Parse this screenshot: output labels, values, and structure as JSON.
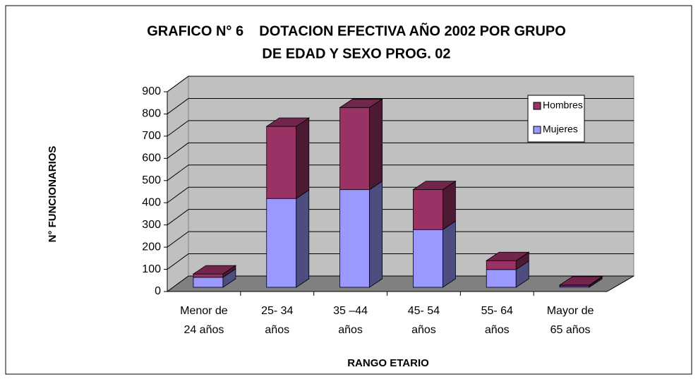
{
  "chart_data": {
    "type": "bar3d_stacked",
    "title": [
      "GRAFICO N° 6    DOTACION EFECTIVA AÑO 2002 POR GRUPO",
      "DE EDAD Y SEXO PROG. 02"
    ],
    "x_label": "RANGO ETARIO",
    "y_label": "N° FUNCIONARIOS",
    "categories": [
      [
        "Menor de",
        "24 años"
      ],
      [
        "25- 34",
        "años"
      ],
      [
        "35 –44",
        "años"
      ],
      [
        "45- 54",
        "años"
      ],
      [
        "55- 64",
        "años"
      ],
      [
        "Mayor de",
        "65 años"
      ]
    ],
    "series": [
      {
        "name": "Mujeres",
        "color": "#9999ff",
        "values": [
          45,
          400,
          440,
          260,
          80,
          5
        ]
      },
      {
        "name": "Hombres",
        "color": "#993366",
        "values": [
          15,
          325,
          370,
          180,
          40,
          5
        ]
      }
    ],
    "ylim": [
      0,
      900
    ],
    "yticks": [
      0,
      100,
      200,
      300,
      400,
      500,
      600,
      700,
      800,
      900
    ],
    "grid": true,
    "legend": "upper right"
  }
}
